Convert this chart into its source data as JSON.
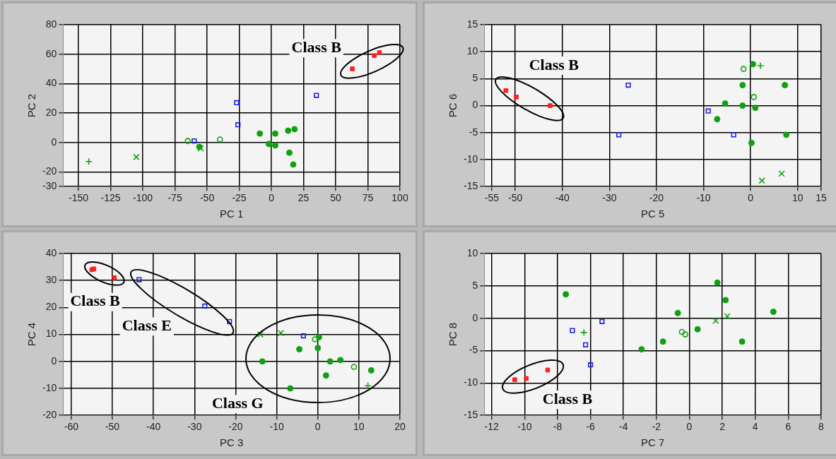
{
  "chart_data": [
    {
      "type": "scatter",
      "xlabel": "PC 1",
      "ylabel": "PC 2",
      "xlim": [
        -162,
        100
      ],
      "xticks": [
        -150,
        -125,
        -100,
        -75,
        -50,
        -25,
        0,
        25,
        50,
        75,
        100
      ],
      "ylim": [
        -30,
        80
      ],
      "yticks": [
        -30,
        -20,
        0,
        20,
        40,
        60,
        80
      ],
      "grid": true,
      "annotations": [
        "Class B"
      ],
      "series": [
        {
          "color": "#ff2020",
          "marker": "square",
          "x": [
            63,
            80,
            84
          ],
          "values": [
            50,
            59,
            61
          ]
        },
        {
          "color": "#1f1fe0",
          "marker": "square-open",
          "x": [
            -60,
            -27,
            -26,
            35
          ],
          "values": [
            1,
            27,
            12,
            32
          ]
        },
        {
          "color": "#10a010",
          "marker": "circle",
          "x": [
            -56,
            -9,
            -2,
            3,
            3,
            13,
            18,
            14,
            17
          ],
          "values": [
            -3,
            6,
            -1,
            6,
            -2,
            8,
            9,
            -7,
            -15
          ]
        },
        {
          "color": "#10a010",
          "marker": "circle-open",
          "x": [
            -65,
            -40
          ],
          "values": [
            1,
            2
          ]
        },
        {
          "color": "#10a010",
          "marker": "cross",
          "x": [
            -105,
            -55
          ],
          "values": [
            -10,
            -4
          ]
        },
        {
          "color": "#10a010",
          "marker": "plus",
          "x": [
            -142
          ],
          "values": [
            -13
          ]
        }
      ]
    },
    {
      "type": "scatter",
      "xlabel": "PC 5",
      "ylabel": "PC 6",
      "xlim": [
        -56.6,
        15
      ],
      "xticks": [
        -55,
        -50,
        -40,
        -30,
        -20,
        -10,
        0,
        10,
        15
      ],
      "ylim": [
        -15,
        15
      ],
      "yticks": [
        -15,
        -10,
        -5,
        0,
        5,
        10,
        15
      ],
      "grid": true,
      "annotations": [
        "Class B"
      ],
      "series": [
        {
          "color": "#ff2020",
          "marker": "square",
          "x": [
            -52,
            -49.8,
            -42.6
          ],
          "values": [
            2.8,
            1.6,
            0
          ]
        },
        {
          "color": "#1f1fe0",
          "marker": "square-open",
          "x": [
            -26,
            -28,
            -9,
            -3.6
          ],
          "values": [
            3.8,
            -5.4,
            -1,
            -5.4
          ]
        },
        {
          "color": "#10a010",
          "marker": "circle",
          "x": [
            0.5,
            -1.7,
            7.3,
            -5.4,
            -1.7,
            1,
            -7.1,
            7.6,
            0.2
          ],
          "values": [
            7.7,
            3.8,
            3.8,
            0.4,
            0,
            -0.4,
            -2.5,
            -5.4,
            -6.9
          ]
        },
        {
          "color": "#10a010",
          "marker": "circle-open",
          "x": [
            -1.5,
            0.7
          ],
          "values": [
            6.8,
            1.6
          ]
        },
        {
          "color": "#10a010",
          "marker": "cross",
          "x": [
            2.4,
            6.6
          ],
          "values": [
            -13.9,
            -12.6
          ]
        },
        {
          "color": "#10a010",
          "marker": "plus",
          "x": [
            2.1
          ],
          "values": [
            7.4
          ]
        }
      ]
    },
    {
      "type": "scatter",
      "xlabel": "PC 3",
      "ylabel": "PC 4",
      "xlim": [
        -62,
        20
      ],
      "xticks": [
        -60,
        -50,
        -40,
        -30,
        -20,
        -10,
        0,
        10,
        20
      ],
      "ylim": [
        -20,
        40
      ],
      "yticks": [
        -20,
        -10,
        0,
        10,
        20,
        30,
        40
      ],
      "grid": true,
      "annotations": [
        "Class B",
        "Class E",
        "Class G"
      ],
      "series": [
        {
          "color": "#ff2020",
          "marker": "square",
          "x": [
            -55,
            -54.5,
            -49.5
          ],
          "values": [
            34,
            34.3,
            31
          ]
        },
        {
          "color": "#1f1fe0",
          "marker": "square-open",
          "x": [
            -43.5,
            -27.5,
            -21.5,
            -3.5
          ],
          "values": [
            30.3,
            20.5,
            14.8,
            9.5
          ]
        },
        {
          "color": "#10a010",
          "marker": "circle",
          "x": [
            0.3,
            -4.5,
            0,
            -13.5,
            3,
            5.5,
            2,
            13,
            -6.7
          ],
          "values": [
            9,
            4.5,
            5,
            0,
            0,
            0.5,
            -5.2,
            -3.3,
            -10
          ]
        },
        {
          "color": "#10a010",
          "marker": "circle-open",
          "x": [
            -0.7,
            8.8
          ],
          "values": [
            8.2,
            -2
          ]
        },
        {
          "color": "#10a010",
          "marker": "cross",
          "x": [
            -14,
            -9
          ],
          "values": [
            10,
            10.5
          ]
        },
        {
          "color": "#10a010",
          "marker": "plus",
          "x": [
            12.2
          ],
          "values": [
            -9
          ]
        }
      ]
    },
    {
      "type": "scatter",
      "xlabel": "PC 7",
      "ylabel": "PC 8",
      "xlim": [
        -12.45,
        8
      ],
      "xticks": [
        -12,
        -10,
        -8,
        -6,
        -4,
        -2,
        0,
        2,
        4,
        6,
        8
      ],
      "ylim": [
        -15,
        10
      ],
      "yticks": [
        -15,
        -10,
        -5,
        0,
        5,
        10
      ],
      "grid": true,
      "annotations": [
        "Class B"
      ],
      "series": [
        {
          "color": "#ff2020",
          "marker": "square",
          "x": [
            -10.6,
            -9.9,
            -8.6
          ],
          "values": [
            -9.5,
            -9.3,
            -8
          ]
        },
        {
          "color": "#1f1fe0",
          "marker": "square-open",
          "x": [
            -7.1,
            -6.3,
            -6,
            -5.3
          ],
          "values": [
            -1.9,
            -4.1,
            -7.2,
            -0.5
          ]
        },
        {
          "color": "#10a010",
          "marker": "circle",
          "x": [
            -7.5,
            1.7,
            2.2,
            -0.7,
            5.1,
            0.5,
            -1.6,
            -2.9,
            3.2
          ],
          "values": [
            3.7,
            5.5,
            2.8,
            0.8,
            1,
            -1.7,
            -3.6,
            -4.8,
            -3.6
          ]
        },
        {
          "color": "#10a010",
          "marker": "circle-open",
          "x": [
            -0.45,
            -0.25
          ],
          "values": [
            -2.1,
            -2.5
          ]
        },
        {
          "color": "#10a010",
          "marker": "cross",
          "x": [
            1.6,
            2.3
          ],
          "values": [
            -0.4,
            0.3
          ]
        },
        {
          "color": "#10a010",
          "marker": "plus",
          "x": [
            -6.4
          ],
          "values": [
            -2.2
          ]
        }
      ]
    }
  ]
}
